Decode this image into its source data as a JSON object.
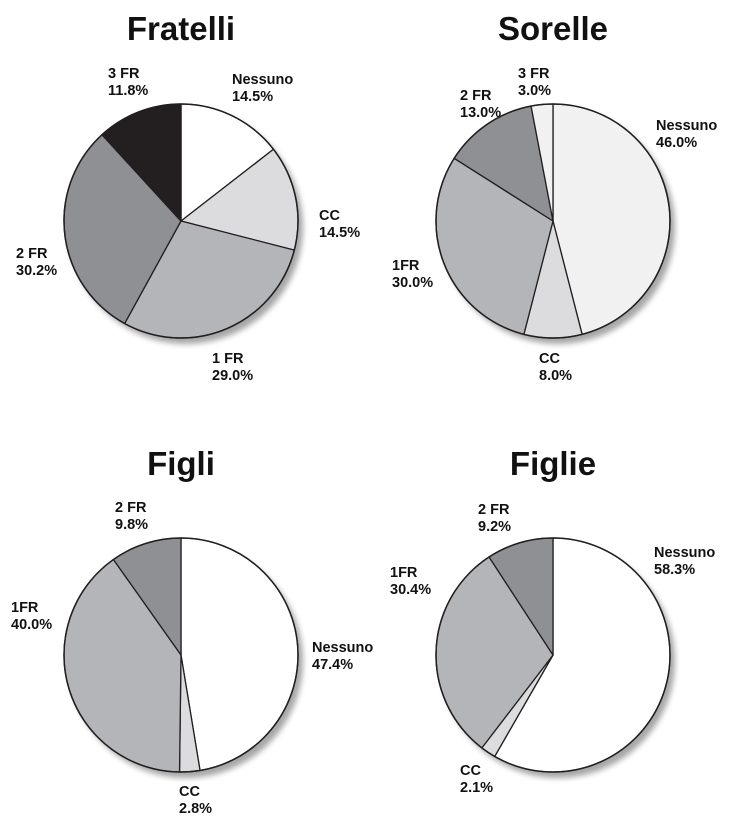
{
  "chart_data": [
    {
      "type": "pie",
      "title": "Fratelli",
      "slices": [
        {
          "label": "Nessuno",
          "value_label": "14.5%",
          "value": 14.5,
          "color": "#ffffff"
        },
        {
          "label": "CC",
          "value_label": "14.5%",
          "value": 14.5,
          "color": "#dcdcde"
        },
        {
          "label": "1 FR",
          "value_label": "29.0%",
          "value": 29.0,
          "color": "#b4b5b8"
        },
        {
          "label": "2 FR",
          "value_label": "30.2%",
          "value": 30.2,
          "color": "#8f9093"
        },
        {
          "label": "3 FR",
          "value_label": "11.8%",
          "value": 11.8,
          "color": "#231f20"
        }
      ]
    },
    {
      "type": "pie",
      "title": "Sorelle",
      "slices": [
        {
          "label": "Nessuno",
          "value_label": "46.0%",
          "value": 46.0,
          "color": "#f1f1f2"
        },
        {
          "label": "CC",
          "value_label": "8.0%",
          "value": 8.0,
          "color": "#dcdcde"
        },
        {
          "label": "1FR",
          "value_label": "30.0%",
          "value": 30.0,
          "color": "#b4b5b8"
        },
        {
          "label": "2 FR",
          "value_label": "13.0%",
          "value": 13.0,
          "color": "#8f9093"
        },
        {
          "label": "3 FR",
          "value_label": "3.0%",
          "value": 3.0,
          "color": "#f1f1f2"
        }
      ]
    },
    {
      "type": "pie",
      "title": "Figli",
      "slices": [
        {
          "label": "Nessuno",
          "value_label": "47.4%",
          "value": 47.4,
          "color": "#ffffff"
        },
        {
          "label": "CC",
          "value_label": "2.8%",
          "value": 2.8,
          "color": "#dcdcde"
        },
        {
          "label": "1FR",
          "value_label": "40.0%",
          "value": 40.0,
          "color": "#b4b5b8"
        },
        {
          "label": "2 FR",
          "value_label": "9.8%",
          "value": 9.8,
          "color": "#8f9093"
        }
      ]
    },
    {
      "type": "pie",
      "title": "Figlie",
      "slices": [
        {
          "label": "Nessuno",
          "value_label": "58.3%",
          "value": 58.3,
          "color": "#ffffff"
        },
        {
          "label": "CC",
          "value_label": "2.1%",
          "value": 2.1,
          "color": "#dcdcde"
        },
        {
          "label": "1FR",
          "value_label": "30.4%",
          "value": 30.4,
          "color": "#b4b5b8"
        },
        {
          "label": "2 FR",
          "value_label": "9.2%",
          "value": 9.2,
          "color": "#8f9093"
        }
      ]
    }
  ]
}
